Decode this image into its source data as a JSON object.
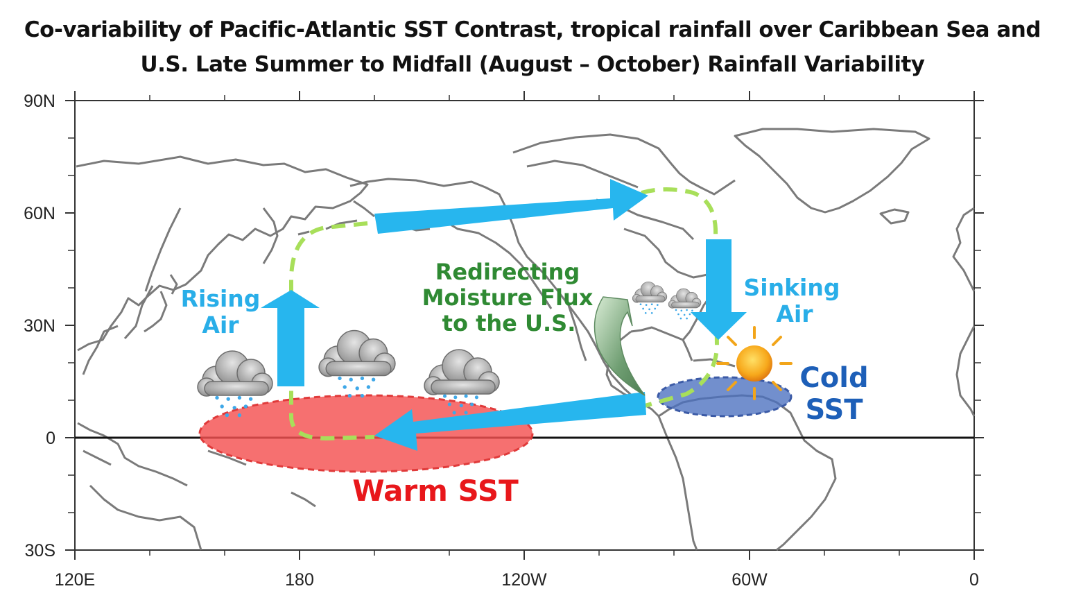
{
  "title": {
    "line1": "Co-variability of Pacific-Atlantic SST Contrast, tropical rainfall over Caribbean Sea and",
    "line2": "U.S. Late Summer to Midfall (August – October) Rainfall Variability"
  },
  "axes": {
    "lat_labels": [
      "90N",
      "60N",
      "30N",
      "0",
      "30S"
    ],
    "lon_labels": [
      "120E",
      "180",
      "120W",
      "60W",
      "0"
    ]
  },
  "labels": {
    "rising_air": [
      "Rising",
      "Air"
    ],
    "sinking_air": [
      "Sinking",
      "Air"
    ],
    "moisture_flux": [
      "Redirecting",
      "Moisture Flux",
      "to the U.S."
    ],
    "warm_sst": "Warm SST",
    "cold_sst": [
      "Cold",
      "SST"
    ]
  },
  "colors": {
    "arrow": "#27b6ee",
    "warm_sst": "#f45050",
    "cold_sst": "#4a6fbf",
    "circulation_loop": "#a8df5a",
    "moisture_label": "#2f8a33",
    "rising_sinking_label": "#29aee8",
    "warm_label": "#e8171b",
    "cold_label": "#1d5fb8",
    "coastline": "#7a7a7a"
  }
}
